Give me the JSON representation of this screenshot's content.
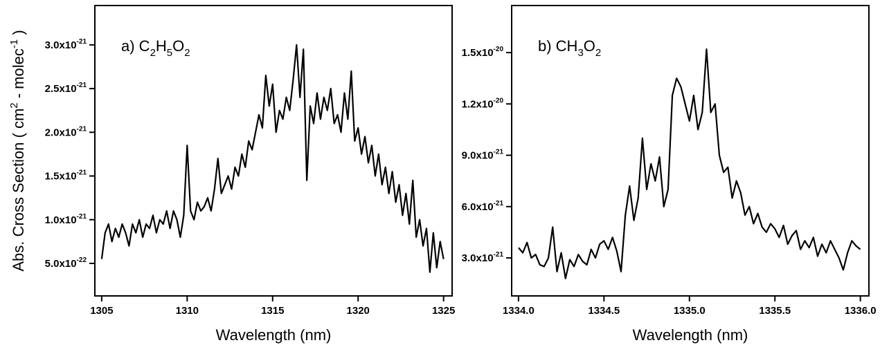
{
  "chart_data": [
    {
      "type": "line",
      "annotation": [
        "a) C",
        "2",
        "H",
        "5",
        "O",
        "2"
      ],
      "x_label": "Wavelength (nm)",
      "y_label": [
        "Abs. Cross Section ( cm",
        "2",
        " - molec",
        "-1",
        " )"
      ],
      "xlim": [
        1304.6,
        1325.5
      ],
      "xticks": [
        1305,
        1310,
        1315,
        1320,
        1325
      ],
      "ylim": [
        1.28e-22,
        3.45e-21
      ],
      "yticks": [
        {
          "value": 5e-22,
          "label": "5.0x10",
          "exp": "-22"
        },
        {
          "value": 1e-21,
          "label": "1.0x10",
          "exp": "-21"
        },
        {
          "value": 1.5e-21,
          "label": "1.5x10",
          "exp": "-21"
        },
        {
          "value": 2e-21,
          "label": "2.0x10",
          "exp": "-21"
        },
        {
          "value": 2.5e-21,
          "label": "2.5x10",
          "exp": "-21"
        },
        {
          "value": 3e-21,
          "label": "3.0x10",
          "exp": "-21"
        }
      ],
      "color": "#000000",
      "x": [
        1305.0,
        1305.2,
        1305.4,
        1305.6,
        1305.8,
        1306.0,
        1306.2,
        1306.4,
        1306.6,
        1306.8,
        1307.0,
        1307.2,
        1307.4,
        1307.6,
        1307.8,
        1308.0,
        1308.2,
        1308.4,
        1308.6,
        1308.8,
        1309.0,
        1309.2,
        1309.4,
        1309.6,
        1309.8,
        1310.0,
        1310.2,
        1310.4,
        1310.6,
        1310.8,
        1311.0,
        1311.2,
        1311.4,
        1311.6,
        1311.8,
        1312.0,
        1312.2,
        1312.4,
        1312.6,
        1312.8,
        1313.0,
        1313.2,
        1313.4,
        1313.6,
        1313.8,
        1314.0,
        1314.2,
        1314.4,
        1314.6,
        1314.8,
        1315.0,
        1315.2,
        1315.4,
        1315.6,
        1315.8,
        1316.0,
        1316.2,
        1316.4,
        1316.6,
        1316.8,
        1317.0,
        1317.2,
        1317.4,
        1317.6,
        1317.8,
        1318.0,
        1318.2,
        1318.4,
        1318.6,
        1318.8,
        1319.0,
        1319.2,
        1319.4,
        1319.6,
        1319.8,
        1320.0,
        1320.2,
        1320.4,
        1320.6,
        1320.8,
        1321.0,
        1321.2,
        1321.4,
        1321.6,
        1321.8,
        1322.0,
        1322.2,
        1322.4,
        1322.6,
        1322.8,
        1323.0,
        1323.2,
        1323.4,
        1323.6,
        1323.8,
        1324.0,
        1324.2,
        1324.4,
        1324.6,
        1324.8,
        1325.0
      ],
      "values": [
        5.5e-22,
        8.5e-22,
        9.5e-22,
        7.5e-22,
        9e-22,
        8e-22,
        9.5e-22,
        8.5e-22,
        7e-22,
        9.5e-22,
        8.5e-22,
        1e-21,
        8e-22,
        9.5e-22,
        9e-22,
        1.05e-21,
        8.5e-22,
        1e-21,
        9.5e-22,
        1.1e-21,
        9e-22,
        1.1e-21,
        1e-21,
        8e-22,
        1.05e-21,
        1.85e-21,
        1.1e-21,
        1e-21,
        1.2e-21,
        1.1e-21,
        1.15e-21,
        1.25e-21,
        1.1e-21,
        1.35e-21,
        1.7e-21,
        1.3e-21,
        1.4e-21,
        1.5e-21,
        1.35e-21,
        1.6e-21,
        1.5e-21,
        1.75e-21,
        1.6e-21,
        1.9e-21,
        1.8e-21,
        2e-21,
        2.2e-21,
        2.05e-21,
        2.65e-21,
        2.3e-21,
        2.55e-21,
        2e-21,
        2.25e-21,
        2.15e-21,
        2.4e-21,
        2.25e-21,
        2.6e-21,
        3e-21,
        2.4e-21,
        2.95e-21,
        1.45e-21,
        2.3e-21,
        2.1e-21,
        2.45e-21,
        2.15e-21,
        2.4e-21,
        2.25e-21,
        2.5e-21,
        2.1e-21,
        2.2e-21,
        2e-21,
        2.45e-21,
        2.15e-21,
        2.7e-21,
        1.9e-21,
        2.05e-21,
        1.75e-21,
        1.95e-21,
        1.65e-21,
        1.85e-21,
        1.5e-21,
        1.75e-21,
        1.4e-21,
        1.6e-21,
        1.3e-21,
        1.55e-21,
        1.2e-21,
        1.4e-21,
        1.05e-21,
        1.3e-21,
        9.5e-22,
        1.45e-21,
        8e-22,
        1e-21,
        7e-22,
        9e-22,
        4e-22,
        8.5e-22,
        4.5e-22,
        7.5e-22,
        5.5e-22
      ]
    },
    {
      "type": "line",
      "annotation": [
        "b) CH",
        "3",
        "O",
        "2"
      ],
      "x_label": "Wavelength (nm)",
      "xlim": [
        1333.96,
        1336.05
      ],
      "xticks": [
        {
          "value": 1334,
          "label": "1334.0"
        },
        {
          "value": 1334.5,
          "label": "1334.5"
        },
        {
          "value": 1335,
          "label": "1335.0"
        },
        {
          "value": 1335.5,
          "label": "1335.5"
        },
        {
          "value": 1336,
          "label": "1336.0"
        }
      ],
      "ylim": [
        7.8e-22,
        1.775e-20
      ],
      "yticks": [
        {
          "value": 3e-21,
          "label": "3.0x10",
          "exp": "-21"
        },
        {
          "value": 6e-21,
          "label": "6.0x10",
          "exp": "-21"
        },
        {
          "value": 9e-21,
          "label": "9.0x10",
          "exp": "-21"
        },
        {
          "value": 1.2e-20,
          "label": "1.2x10",
          "exp": "-20"
        },
        {
          "value": 1.5e-20,
          "label": "1.5x10",
          "exp": "-20"
        }
      ],
      "color": "#000000",
      "x": [
        1334.0,
        1334.025,
        1334.05,
        1334.075,
        1334.1,
        1334.125,
        1334.15,
        1334.175,
        1334.2,
        1334.225,
        1334.25,
        1334.275,
        1334.3,
        1334.325,
        1334.35,
        1334.375,
        1334.4,
        1334.425,
        1334.45,
        1334.475,
        1334.5,
        1334.525,
        1334.55,
        1334.575,
        1334.6,
        1334.625,
        1334.65,
        1334.675,
        1334.7,
        1334.725,
        1334.75,
        1334.775,
        1334.8,
        1334.825,
        1334.85,
        1334.875,
        1334.9,
        1334.925,
        1334.95,
        1334.975,
        1335.0,
        1335.025,
        1335.05,
        1335.075,
        1335.1,
        1335.125,
        1335.15,
        1335.175,
        1335.2,
        1335.225,
        1335.25,
        1335.275,
        1335.3,
        1335.325,
        1335.35,
        1335.375,
        1335.4,
        1335.425,
        1335.45,
        1335.475,
        1335.5,
        1335.525,
        1335.55,
        1335.575,
        1335.6,
        1335.625,
        1335.65,
        1335.675,
        1335.7,
        1335.725,
        1335.75,
        1335.775,
        1335.8,
        1335.825,
        1335.85,
        1335.875,
        1335.9,
        1335.925,
        1335.95,
        1335.975,
        1336.0
      ],
      "values": [
        3.6e-21,
        3.3e-21,
        3.9e-21,
        3e-21,
        3.2e-21,
        2.6e-21,
        2.5e-21,
        3e-21,
        4.8e-21,
        2.2e-21,
        3.3e-21,
        1.8e-21,
        2.9e-21,
        2.5e-21,
        3.2e-21,
        2.8e-21,
        2.6e-21,
        3.5e-21,
        3e-21,
        3.8e-21,
        4e-21,
        3.5e-21,
        4.2e-21,
        3.4e-21,
        2.2e-21,
        5.5e-21,
        7.2e-21,
        5.2e-21,
        6.5e-21,
        1e-20,
        7e-21,
        8.5e-21,
        7.5e-21,
        8.9e-21,
        6e-21,
        7e-21,
        1.25e-20,
        1.35e-20,
        1.3e-20,
        1.2e-20,
        1.1e-20,
        1.25e-20,
        1.05e-20,
        1.15e-20,
        1.52e-20,
        1.15e-20,
        1.2e-20,
        9e-21,
        8e-21,
        8.3e-21,
        6.5e-21,
        7.5e-21,
        6.8e-21,
        5.5e-21,
        6e-21,
        5e-21,
        5.6e-21,
        4.8e-21,
        4.5e-21,
        5e-21,
        4.7e-21,
        4.2e-21,
        4.9e-21,
        3.8e-21,
        4.3e-21,
        4.6e-21,
        3.5e-21,
        4e-21,
        3.6e-21,
        4.2e-21,
        3.1e-21,
        3.8e-21,
        3.3e-21,
        4e-21,
        3.5e-21,
        3e-21,
        2.3e-21,
        3.3e-21,
        4e-21,
        3.7e-21,
        3.5e-21
      ]
    }
  ]
}
